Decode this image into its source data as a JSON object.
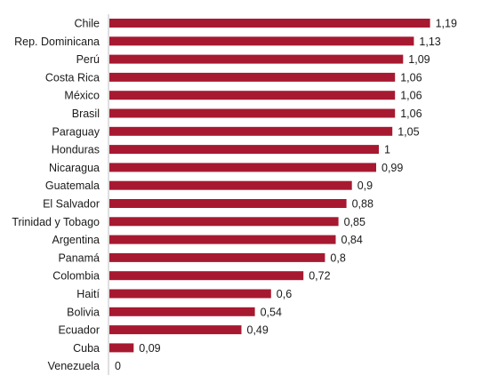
{
  "chart_data": {
    "type": "bar",
    "orientation": "horizontal",
    "categories": [
      "Chile",
      "Rep. Dominicana",
      "Perú",
      "Costa Rica",
      "México",
      "Brasil",
      "Paraguay",
      "Honduras",
      "Nicaragua",
      "Guatemala",
      "El Salvador",
      "Trinidad y Tobago",
      "Argentina",
      "Panamá",
      "Colombia",
      "Haití",
      "Bolivia",
      "Ecuador",
      "Cuba",
      "Venezuela"
    ],
    "values": [
      1.19,
      1.13,
      1.09,
      1.06,
      1.06,
      1.06,
      1.05,
      1,
      0.99,
      0.9,
      0.88,
      0.85,
      0.84,
      0.8,
      0.72,
      0.6,
      0.54,
      0.49,
      0.09,
      0
    ],
    "value_labels": [
      "1,19",
      "1,13",
      "1,09",
      "1,06",
      "1,06",
      "1,06",
      "1,05",
      "1",
      "0,99",
      "0,9",
      "0,88",
      "0,85",
      "0,84",
      "0,8",
      "0,72",
      "0,6",
      "0,54",
      "0,49",
      "0,09",
      "0"
    ],
    "bar_color": "#a71930",
    "xlim": [
      0,
      1.19
    ],
    "grid": false,
    "title": "",
    "xlabel": "",
    "ylabel": ""
  }
}
